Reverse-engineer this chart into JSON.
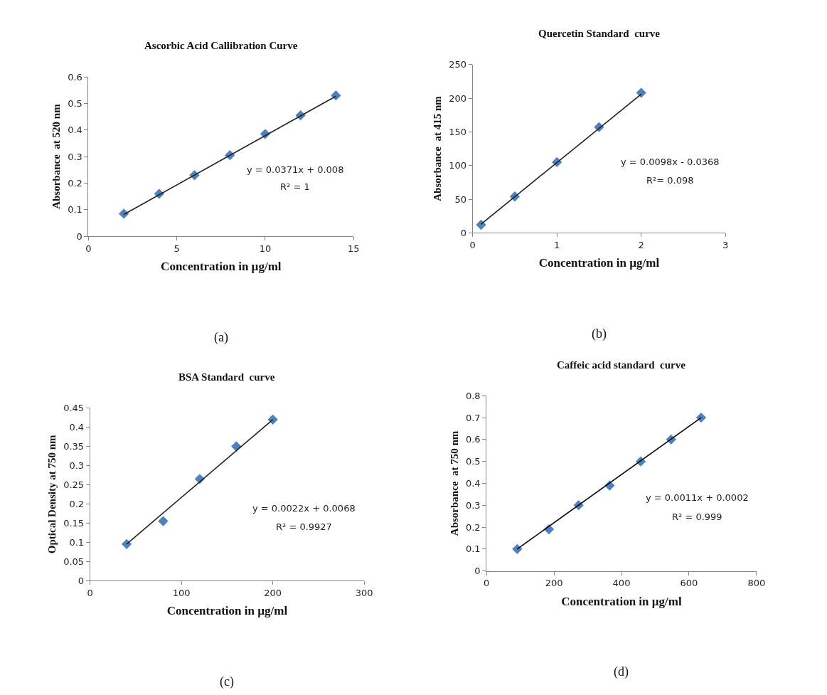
{
  "chart_data": [
    {
      "type": "scatter",
      "title": "Ascorbic Acid Callibration Curve",
      "xlabel": "Concentration in µg/ml",
      "ylabel": "Absorbance  at 520 nm",
      "xlim": [
        0,
        15
      ],
      "xticks": [
        0,
        5,
        10,
        15
      ],
      "ylim": [
        0,
        0.6
      ],
      "yticks": [
        0,
        0.1,
        0.2,
        0.3,
        0.4,
        0.5,
        0.6
      ],
      "annotations": [
        "y = 0.0371x + 0.008",
        "R² = 1",
        "(a)"
      ],
      "series": [
        {
          "marker": "diamond",
          "color": "#4f81bd",
          "x": [
            2,
            4,
            6,
            8,
            10,
            12,
            14
          ],
          "values": [
            0.085,
            0.16,
            0.23,
            0.305,
            0.385,
            0.455,
            0.53
          ]
        },
        {
          "type": "line",
          "marker": "none",
          "color": "#1f1f1f",
          "line_style": "solid",
          "x": [
            2,
            14
          ],
          "values": [
            0.082,
            0.527
          ]
        }
      ]
    },
    {
      "type": "scatter",
      "title": "Quercetin Standard  curve",
      "xlabel": "Concentration in µg/ml",
      "ylabel": "Absorbance  at 415 nm",
      "xlim": [
        0,
        3
      ],
      "xticks": [
        0,
        1,
        2,
        3
      ],
      "ylim": [
        0,
        250
      ],
      "yticks": [
        0,
        50,
        100,
        150,
        200,
        250
      ],
      "annotations": [
        "y = 0.0098x - 0.0368",
        "R²= 0.098",
        "(b)"
      ],
      "series": [
        {
          "marker": "diamond",
          "color": "#4f81bd",
          "x": [
            0.1,
            0.5,
            1,
            1.5,
            2
          ],
          "values": [
            12,
            54,
            105,
            157,
            208
          ]
        },
        {
          "type": "line",
          "marker": "none",
          "color": "#1f1f1f",
          "line_style": "solid",
          "x": [
            0.1,
            2
          ],
          "values": [
            13,
            206
          ]
        }
      ]
    },
    {
      "type": "scatter",
      "title": "BSA Standard  curve",
      "xlabel": "Concentration in µg/ml",
      "ylabel": "Optical Density at 750 nm",
      "xlim": [
        0,
        300
      ],
      "xticks": [
        0,
        100,
        200,
        300
      ],
      "ylim": [
        0,
        0.45
      ],
      "yticks": [
        0,
        0.05,
        0.1,
        0.15,
        0.2,
        0.25,
        0.3,
        0.35,
        0.4,
        0.45
      ],
      "annotations": [
        "y = 0.0022x + 0.0068",
        "R² = 0.9927",
        "(c)"
      ],
      "series": [
        {
          "marker": "diamond",
          "color": "#4f81bd",
          "x": [
            40,
            80,
            120,
            160,
            200
          ],
          "values": [
            0.095,
            0.155,
            0.265,
            0.35,
            0.42
          ]
        },
        {
          "type": "line",
          "marker": "none",
          "color": "#1f1f1f",
          "line_style": "solid",
          "x": [
            40,
            200
          ],
          "values": [
            0.095,
            0.42
          ]
        }
      ]
    },
    {
      "type": "scatter",
      "title": "Caffeic acid standard  curve",
      "xlabel": "Concentration in µg/ml",
      "ylabel": "Absorbance  at 750 nm",
      "xlim": [
        0,
        800
      ],
      "xticks": [
        0,
        200,
        400,
        600,
        800
      ],
      "ylim": [
        0,
        0.8
      ],
      "yticks": [
        0,
        0.1,
        0.2,
        0.3,
        0.4,
        0.5,
        0.6,
        0.7,
        0.8
      ],
      "annotations": [
        "y = 0.0011x + 0.0002",
        "R² = 0.999",
        "(d)"
      ],
      "series": [
        {
          "marker": "diamond",
          "color": "#4f81bd",
          "x": [
            91,
            185,
            273,
            365,
            457,
            547,
            636
          ],
          "values": [
            0.1,
            0.19,
            0.3,
            0.39,
            0.5,
            0.6,
            0.7
          ]
        },
        {
          "type": "line",
          "marker": "none",
          "color": "#000000",
          "line_style": "solid",
          "x": [
            91,
            636
          ],
          "values": [
            0.1,
            0.7
          ]
        }
      ]
    }
  ]
}
